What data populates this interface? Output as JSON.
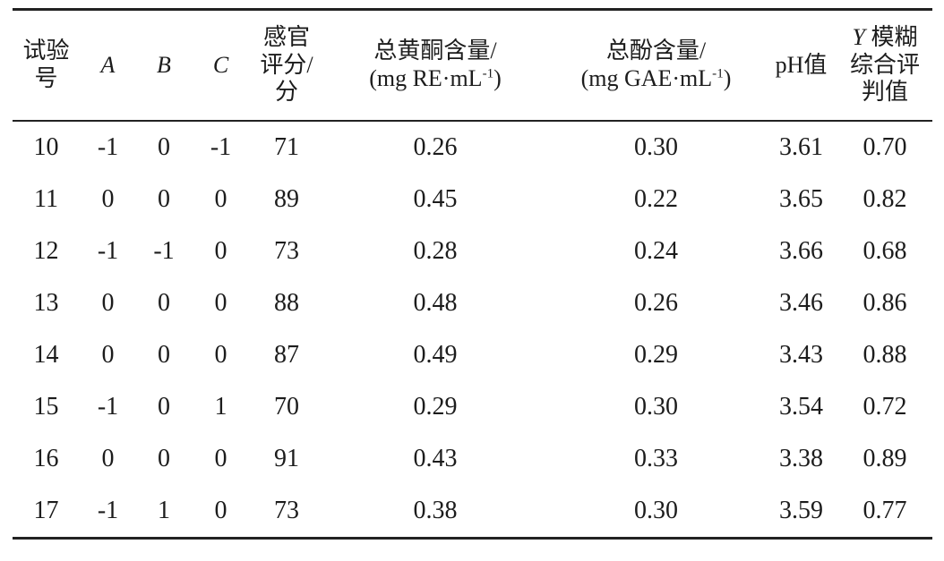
{
  "table": {
    "header": {
      "test_no": "试验\n号",
      "factor_a": "A",
      "factor_b": "B",
      "factor_c": "C",
      "sensory_score": "感官\n评分/\n分",
      "flavonoid_name": "总黄酮含量/",
      "flavonoid_unit_pre": "(mg RE·mL",
      "flavonoid_unit_sup": "-1",
      "flavonoid_unit_post": ")",
      "phenol_name": "总酚含量/",
      "phenol_unit_pre": "(mg GAE·mL",
      "phenol_unit_sup": "-1",
      "phenol_unit_post": ")",
      "ph": "pH值",
      "y_symbol": "Y",
      "y_rest": " 模糊\n综合评\n判值"
    },
    "rows": [
      {
        "no": "10",
        "A": "-1",
        "B": "0",
        "C": "-1",
        "score": "71",
        "flavonoid": "0.26",
        "phenol": "0.30",
        "ph": "3.61",
        "y": "0.70"
      },
      {
        "no": "11",
        "A": "0",
        "B": "0",
        "C": "0",
        "score": "89",
        "flavonoid": "0.45",
        "phenol": "0.22",
        "ph": "3.65",
        "y": "0.82"
      },
      {
        "no": "12",
        "A": "-1",
        "B": "-1",
        "C": "0",
        "score": "73",
        "flavonoid": "0.28",
        "phenol": "0.24",
        "ph": "3.66",
        "y": "0.68"
      },
      {
        "no": "13",
        "A": "0",
        "B": "0",
        "C": "0",
        "score": "88",
        "flavonoid": "0.48",
        "phenol": "0.26",
        "ph": "3.46",
        "y": "0.86"
      },
      {
        "no": "14",
        "A": "0",
        "B": "0",
        "C": "0",
        "score": "87",
        "flavonoid": "0.49",
        "phenol": "0.29",
        "ph": "3.43",
        "y": "0.88"
      },
      {
        "no": "15",
        "A": "-1",
        "B": "0",
        "C": "1",
        "score": "70",
        "flavonoid": "0.29",
        "phenol": "0.30",
        "ph": "3.54",
        "y": "0.72"
      },
      {
        "no": "16",
        "A": "0",
        "B": "0",
        "C": "0",
        "score": "91",
        "flavonoid": "0.43",
        "phenol": "0.33",
        "ph": "3.38",
        "y": "0.89"
      },
      {
        "no": "17",
        "A": "-1",
        "B": "1",
        "C": "0",
        "score": "73",
        "flavonoid": "0.38",
        "phenol": "0.30",
        "ph": "3.59",
        "y": "0.77"
      }
    ]
  }
}
